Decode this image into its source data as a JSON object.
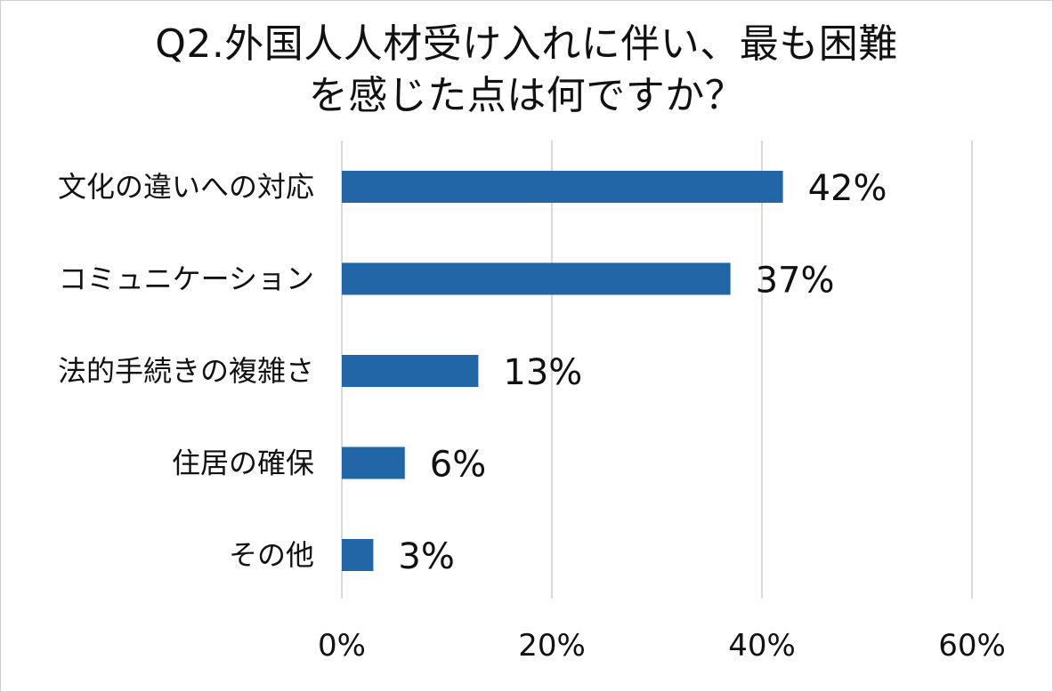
{
  "chart_data": {
    "type": "bar",
    "orientation": "horizontal",
    "title_lines": [
      "Q2.外国人人材受け入れに伴い、最も困難",
      "を感じた点は何ですか？"
    ],
    "categories": [
      "文化の違いへの対応",
      "コミュニケーション",
      "法的手続きの複雑さ",
      "住居の確保",
      "その他"
    ],
    "values": [
      42,
      37,
      13,
      6,
      3
    ],
    "value_labels": [
      "42%",
      "37%",
      "13%",
      "6%",
      "3%"
    ],
    "xlim": [
      0,
      60
    ],
    "xticks": [
      0,
      20,
      40,
      60
    ],
    "xtick_labels": [
      "0%",
      "20%",
      "40%",
      "60%"
    ],
    "grid": "vertical",
    "legend": "none",
    "bar_color": "#2266a8",
    "grid_color": "#d9d9d9"
  }
}
